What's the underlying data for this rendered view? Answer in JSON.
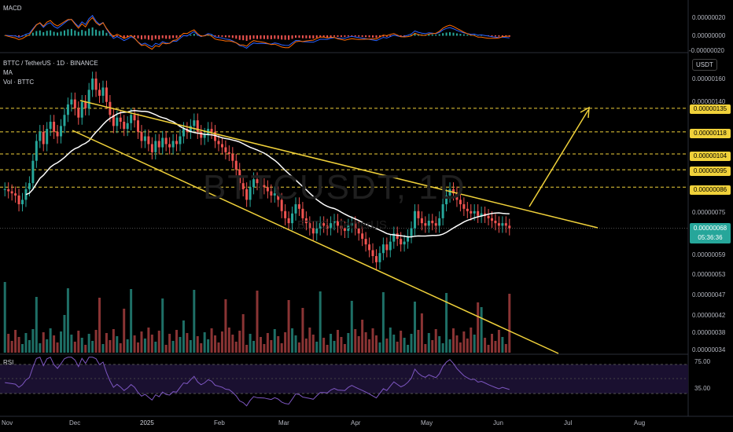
{
  "header": {
    "symbol_line": "BTTC / TetherUS · 1D · BINANCE",
    "indicator_ma": "MA",
    "indicator_vol": "Vol · BTTC",
    "macd_title": "MACD",
    "rsi_title": "RSI",
    "unit_button": "USDT",
    "watermark": "BTTCUSDT, 1D",
    "watermark_sub": "BTTC / TetherUS"
  },
  "price_axis": {
    "ticks": [
      "0.00000160",
      "0.00000140",
      "0.00000075",
      "0.00000059",
      "0.00000053",
      "0.00000047",
      "0.00000042",
      "0.00000038",
      "0.00000034"
    ],
    "highlighted": [
      "0.00000135",
      "0.00000118",
      "0.00000104",
      "0.00000095",
      "0.00000086"
    ],
    "current_price": "0.00000068",
    "countdown": "05:36:36"
  },
  "macd_axis": [
    "0.00000020",
    "0.00000000",
    "-0.00000020"
  ],
  "rsi_axis": [
    "75.00",
    "35.00"
  ],
  "time_axis": [
    "Nov",
    "Dec",
    "2025",
    "Feb",
    "Mar",
    "Apr",
    "May",
    "Jun",
    "Jul",
    "Aug"
  ],
  "colors": {
    "up": "#26a69a",
    "down": "#ef5350",
    "trendline": "#f0d13a",
    "ma": "#ffffff",
    "rsi": "#7e57c2"
  },
  "chart_data": {
    "type": "candlestick",
    "timeframe": "1D",
    "closes": [
      8.5e-07,
      8.4e-07,
      8.3e-07,
      8.2e-07,
      7.8e-07,
      8e-07,
      8.5e-07,
      8.8e-07,
      1e-06,
      1.12e-06,
      1.18e-06,
      1.1e-06,
      1.2e-06,
      1.25e-06,
      1.18e-06,
      1.15e-06,
      1.22e-06,
      1.3e-06,
      1.38e-06,
      1.42e-06,
      1.35e-06,
      1.28e-06,
      1.4e-06,
      1.35e-06,
      1.5e-06,
      1.6e-06,
      1.5e-06,
      1.45e-06,
      1.52e-06,
      1.4e-06,
      1.3e-06,
      1.22e-06,
      1.28e-06,
      1.25e-06,
      1.2e-06,
      1.24e-06,
      1.3e-06,
      1.26e-06,
      1.18e-06,
      1.12e-06,
      1.15e-06,
      1.1e-06,
      1.05e-06,
      1.12e-06,
      1.08e-06,
      1.14e-06,
      1.1e-06,
      1.08e-06,
      1.12e-06,
      1.1e-06,
      1.15e-06,
      1.2e-06,
      1.18e-06,
      1.22e-06,
      1.26e-06,
      1.18e-06,
      1.14e-06,
      1.16e-06,
      1.2e-06,
      1.18e-06,
      1.12e-06,
      1.1e-06,
      1.08e-06,
      1.05e-06,
      1.04e-06,
      1e-06,
      9.5e-07,
      8.8e-07,
      8.5e-07,
      8e-07,
      8.6e-07,
      9e-07,
      8.8e-07,
      8.7e-07,
      8.6e-07,
      8.4e-07,
      8.2e-07,
      8.3e-07,
      8e-07,
      7.5e-07,
      7.2e-07,
      7e-07,
      7.4e-07,
      7.8e-07,
      7.6e-07,
      7.2e-07,
      7e-07,
      6.8e-07,
      6.6e-07,
      6.8e-07,
      7e-07,
      6.9e-07,
      6.8e-07,
      7e-07,
      7.1e-07,
      6.9e-07,
      6.8e-07,
      6.7e-07,
      6.9e-07,
      7e-07,
      6.8e-07,
      6.6e-07,
      6.4e-07,
      6.2e-07,
      6e-07,
      5.8e-07,
      5.6e-07,
      5.9e-07,
      6.2e-07,
      6e-07,
      6.3e-07,
      6.6e-07,
      6.4e-07,
      6.2e-07,
      6.3e-07,
      6.5e-07,
      6.8e-07,
      7.5e-07,
      7.2e-07,
      7e-07,
      6.9e-07,
      7.1e-07,
      7e-07,
      6.9e-07,
      7.2e-07,
      7.8e-07,
      8.2e-07,
      8.5e-07,
      8.3e-07,
      8e-07,
      7.8e-07,
      7.6e-07,
      7.5e-07,
      7.4e-07,
      7.5e-07,
      7.3e-07,
      7.4e-07,
      7.3e-07,
      7.2e-07,
      7.1e-07,
      7e-07,
      6.9e-07,
      7e-07,
      6.9e-07,
      6.8e-07
    ],
    "annotations": [
      "descending channel",
      "breakout arrow to 0.00000135"
    ]
  }
}
